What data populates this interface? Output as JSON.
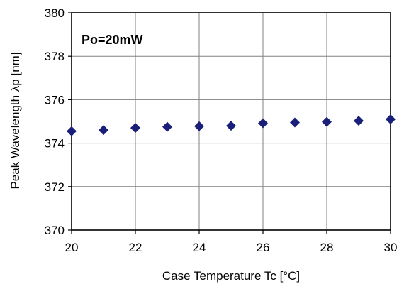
{
  "chart_data": {
    "type": "scatter",
    "title": "",
    "annotation": "Po=20mW",
    "xlabel": "Case Temperature  Tc [°C]",
    "ylabel": "Peak Wavelength λp [nm]",
    "xlim": [
      20,
      30
    ],
    "ylim": [
      370,
      380
    ],
    "xticks": [
      20,
      22,
      24,
      26,
      28,
      30
    ],
    "yticks": [
      370,
      372,
      374,
      376,
      378,
      380
    ],
    "grid": true,
    "marker": "diamond",
    "colors": {
      "marker": "#1a1f7a",
      "axis": "#000000",
      "grid": "#808080"
    },
    "series": [
      {
        "x": [
          20,
          21,
          22,
          23,
          24,
          25,
          26,
          27,
          28,
          29,
          30
        ],
        "y": [
          374.55,
          374.6,
          374.7,
          374.75,
          374.78,
          374.8,
          374.92,
          374.95,
          374.98,
          375.03,
          375.1
        ]
      }
    ]
  }
}
